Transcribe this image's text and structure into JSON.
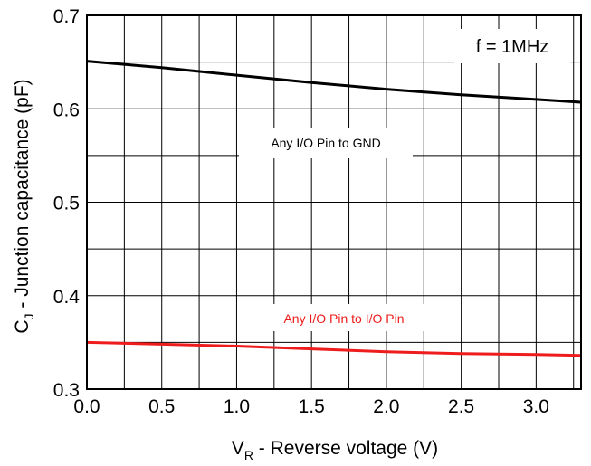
{
  "chart_data": {
    "type": "line",
    "xlabel": {
      "main": "V",
      "sub": "R",
      "rest": " - Reverse voltage (V)"
    },
    "ylabel": {
      "main": "C",
      "sub": "J",
      "rest": " - Junction capacitance (pF)"
    },
    "xlim": [
      0.0,
      3.3
    ],
    "ylim": [
      0.3,
      0.7
    ],
    "xticks": [
      "0.0",
      "0.5",
      "1.0",
      "1.5",
      "2.0",
      "2.5",
      "3.0"
    ],
    "yticks": [
      "0.3",
      "0.4",
      "0.5",
      "0.6",
      "0.7"
    ],
    "grid": true,
    "frequency_label": "f = 1MHz",
    "series": [
      {
        "name": "Any I/O Pin to GND",
        "color": "#000000",
        "x": [
          0.0,
          0.5,
          1.0,
          1.5,
          2.0,
          2.5,
          3.0,
          3.3
        ],
        "values": [
          0.651,
          0.644,
          0.636,
          0.628,
          0.621,
          0.615,
          0.61,
          0.607
        ]
      },
      {
        "name": "Any I/O Pin to I/O Pin",
        "color": "#ee1c1c",
        "x": [
          0.0,
          0.5,
          1.0,
          1.5,
          2.0,
          2.5,
          3.0,
          3.3
        ],
        "values": [
          0.35,
          0.348,
          0.346,
          0.343,
          0.34,
          0.338,
          0.337,
          0.336
        ]
      }
    ]
  }
}
